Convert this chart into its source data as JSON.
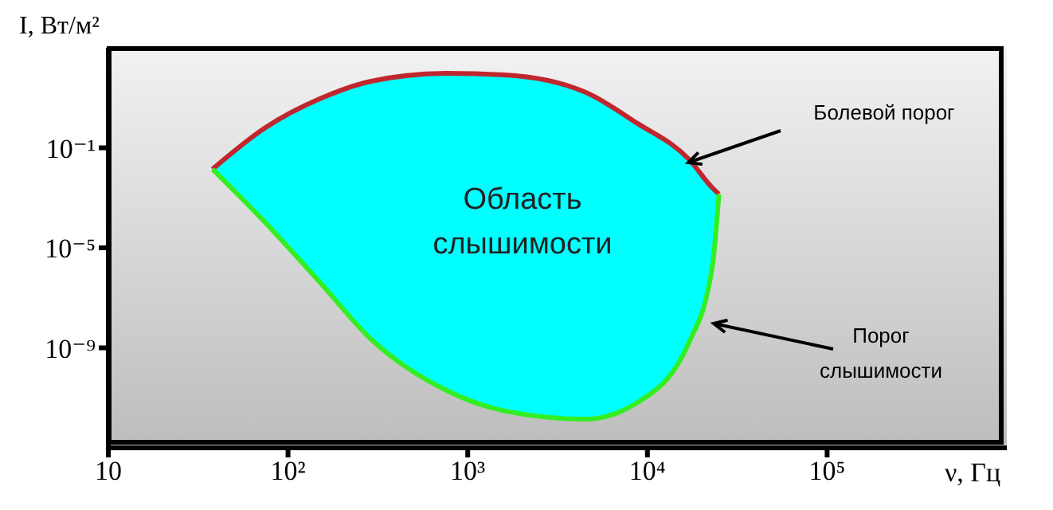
{
  "chart_data": {
    "type": "line",
    "xlabel": "ν, Гц",
    "ylabel": "I, Вт/м²",
    "log": "xy",
    "xlim": [
      10,
      1000000
    ],
    "ylim": [
      1e-13,
      1000
    ],
    "xticks": [
      10,
      {
        "value": 100,
        "label": "10²"
      },
      {
        "value": 1000,
        "label": "10³"
      },
      {
        "value": 10000,
        "label": "10⁴"
      },
      {
        "value": 100000,
        "label": "10⁵"
      }
    ],
    "yticks": [
      {
        "value": 0.1,
        "label": "10⁻¹"
      },
      {
        "value": 1e-05,
        "label": "10⁻⁵"
      },
      {
        "value": 1e-09,
        "label": "10⁻⁹"
      }
    ],
    "x": [
      38,
      75,
      150,
      290,
      760,
      1600,
      4500,
      8700,
      17000,
      23000,
      25000
    ],
    "annotations": [
      "Область слышимости"
    ],
    "series": [
      {
        "name": "Болевой порог",
        "color": "#c0262d",
        "values": [
          0.014,
          0.65,
          9.1,
          46,
          95,
          83,
          17,
          1.0,
          0.035,
          0.0025,
          0.0014
        ]
      },
      {
        "name": "Порог слышимости",
        "color": "#33ee22",
        "values": [
          0.014,
          0.0001,
          4.3e-07,
          2.2e-09,
          2e-11,
          3e-12,
          1.4e-12,
          6.2e-12,
          1.6e-09,
          1.9e-06,
          0.0014
        ],
        "lower": [
          0.014,
          0.0001,
          4.3e-07,
          2.2e-09,
          2e-11,
          3e-12,
          1.4e-12,
          6.2e-12,
          1.6e-09,
          1.9e-06,
          0.0014
        ],
        "upper": [
          0.014,
          0.65,
          9.1,
          46,
          95,
          83,
          17,
          1.0,
          0.035,
          0.0025,
          0.0014
        ]
      }
    ]
  }
}
